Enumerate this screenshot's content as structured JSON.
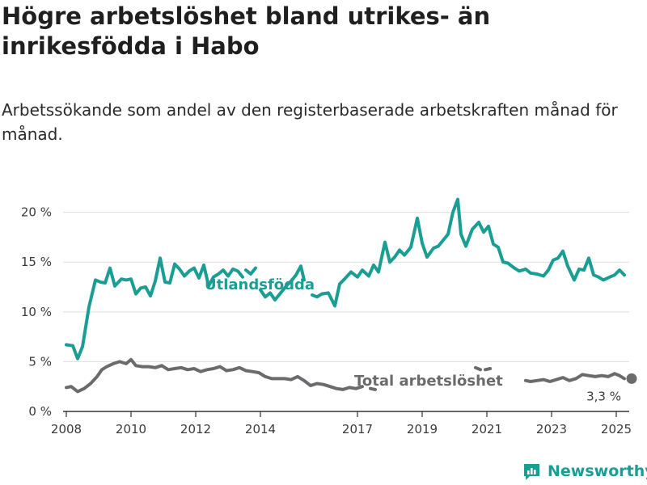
{
  "title": "Högre arbetslöshet bland utrikes- än inrikesfödda i Habo",
  "subtitle": "Arbetssökande som andel av den registerbaserade arbetskraften månad för månad.",
  "brand": {
    "name": "Newsworthy",
    "icon": "newsworthy-logo-icon"
  },
  "colors": {
    "utlandsfodda": "#1a9e94",
    "total": "#6b6b6d",
    "grid": "#dedede",
    "axis": "#333333"
  },
  "chart_data": {
    "type": "line",
    "title": "Högre arbetslöshet bland utrikes- än inrikesfödda i Habo",
    "subtitle": "Arbetssökande som andel av den registerbaserade arbetskraften månad för månad.",
    "xlabel": "",
    "ylabel": "",
    "xlim": [
      2007.9,
      2025.4
    ],
    "ylim": [
      0,
      22
    ],
    "x_ticks": [
      2008,
      2010,
      2012,
      2014,
      2017,
      2019,
      2021,
      2023,
      2025
    ],
    "x_tick_labels": [
      "2008",
      "2010",
      "2012",
      "2014",
      "2017",
      "2019",
      "2021",
      "2023",
      "2025"
    ],
    "y_ticks": [
      0,
      5,
      10,
      15,
      20
    ],
    "y_tick_labels": [
      "0 %",
      "5 %",
      "10 %",
      "15 %",
      "20 %"
    ],
    "grid": true,
    "legend": "direct labels on lines",
    "series": [
      {
        "name": "Utlandsfödda",
        "x": [
          2008.0,
          2008.2,
          2008.35,
          2008.5,
          2008.7,
          2008.9,
          2009.05,
          2009.2,
          2009.35,
          2009.5,
          2009.7,
          2009.85,
          2010.0,
          2010.15,
          2010.3,
          2010.45,
          2010.6,
          2010.75,
          2010.9,
          2011.05,
          2011.2,
          2011.35,
          2011.5,
          2011.65,
          2011.8,
          2011.95,
          2012.1,
          2012.25,
          2012.4,
          2012.55,
          2012.7,
          2012.85,
          2013.0,
          2013.15,
          2013.3,
          2013.45,
          null,
          2013.55,
          2013.7,
          2013.85,
          null,
          2014.0,
          2014.15,
          2014.3,
          2014.45,
          2014.6,
          2014.8,
          2014.95,
          2015.1,
          2015.25,
          2015.35,
          null,
          2015.6,
          2015.75,
          2015.9,
          2016.1,
          2016.3,
          2016.45,
          2016.6,
          2016.8,
          2017.0,
          2017.15,
          2017.35,
          2017.5,
          2017.65,
          2017.85,
          2018.0,
          2018.15,
          2018.3,
          2018.45,
          2018.65,
          2018.85,
          2019.0,
          2019.15,
          2019.35,
          2019.5,
          2019.65,
          2019.8,
          2019.95,
          2020.1,
          2020.2,
          2020.35,
          2020.55,
          2020.75,
          2020.9,
          2021.05,
          2021.2,
          2021.35,
          2021.5,
          2021.65,
          2021.85,
          2022.0,
          2022.2,
          2022.35,
          2022.55,
          2022.75,
          2022.9,
          2023.05,
          2023.2,
          2023.35,
          2023.5,
          2023.7,
          2023.85,
          2024.0,
          2024.15,
          2024.3,
          2024.45,
          2024.6,
          2024.8,
          2024.95,
          2025.1,
          2025.25
        ],
        "values": [
          6.7,
          6.6,
          5.3,
          6.5,
          10.5,
          13.2,
          13.0,
          12.9,
          14.4,
          12.6,
          13.3,
          13.2,
          13.3,
          11.8,
          12.4,
          12.5,
          11.6,
          13.1,
          15.4,
          13.0,
          12.9,
          14.8,
          14.3,
          13.6,
          14.1,
          14.4,
          13.4,
          14.7,
          12.6,
          13.5,
          13.8,
          14.2,
          13.6,
          14.3,
          14.1,
          13.5,
          null,
          14.2,
          13.8,
          14.4,
          null,
          12.2,
          11.5,
          11.9,
          11.2,
          11.8,
          12.6,
          13.1,
          13.7,
          14.6,
          13.2,
          null,
          11.7,
          11.5,
          11.8,
          11.9,
          10.6,
          12.8,
          13.3,
          14.0,
          13.5,
          14.2,
          13.6,
          14.7,
          14.0,
          17.0,
          15.0,
          15.5,
          16.2,
          15.7,
          16.5,
          19.4,
          16.9,
          15.5,
          16.4,
          16.6,
          17.2,
          17.8,
          20.0,
          21.3,
          17.8,
          16.6,
          18.3,
          19.0,
          18.0,
          18.6,
          16.8,
          16.5,
          15.0,
          14.9,
          14.4,
          14.1,
          14.3,
          13.9,
          13.8,
          13.6,
          14.2,
          15.2,
          15.4,
          16.1,
          14.6,
          13.2,
          14.3,
          14.2,
          15.4,
          13.7,
          13.5,
          13.2,
          13.5,
          13.7,
          14.2,
          13.7
        ],
        "label": "Utlandsfödda"
      },
      {
        "name": "Total arbetslöshet",
        "x": [
          2008.0,
          2008.15,
          2008.35,
          2008.55,
          2008.75,
          2008.95,
          2009.1,
          2009.25,
          2009.45,
          2009.65,
          2009.85,
          2010.0,
          2010.15,
          2010.35,
          2010.55,
          2010.75,
          2010.95,
          2011.15,
          2011.35,
          2011.55,
          2011.75,
          2011.95,
          2012.15,
          2012.35,
          2012.55,
          2012.75,
          2012.95,
          2013.15,
          2013.35,
          2013.55,
          2013.75,
          2013.95,
          2014.15,
          2014.35,
          2014.55,
          2014.75,
          2014.95,
          2015.15,
          2015.35,
          2015.55,
          2015.75,
          2015.95,
          2016.15,
          2016.35,
          2016.55,
          2016.75,
          2016.95,
          2017.15,
          null,
          2017.4,
          2017.55,
          null,
          2020.65,
          2020.8,
          null,
          2020.95,
          2021.1,
          null,
          2022.2,
          2022.35,
          2022.55,
          2022.75,
          2022.95,
          2023.15,
          2023.35,
          2023.55,
          2023.75,
          2023.95,
          2024.15,
          2024.35,
          2024.55,
          2024.75,
          2024.95,
          2025.1,
          2025.25
        ],
        "values": [
          2.4,
          2.5,
          2.0,
          2.3,
          2.8,
          3.5,
          4.2,
          4.5,
          4.8,
          5.0,
          4.8,
          5.2,
          4.6,
          4.5,
          4.5,
          4.4,
          4.6,
          4.2,
          4.3,
          4.4,
          4.2,
          4.3,
          4.0,
          4.2,
          4.3,
          4.5,
          4.1,
          4.2,
          4.4,
          4.1,
          4.0,
          3.9,
          3.5,
          3.3,
          3.3,
          3.3,
          3.2,
          3.5,
          3.1,
          2.6,
          2.8,
          2.7,
          2.5,
          2.3,
          2.2,
          2.4,
          2.3,
          2.5,
          null,
          2.3,
          2.2,
          null,
          4.4,
          4.2,
          null,
          4.2,
          4.3,
          null,
          3.1,
          3.0,
          3.1,
          3.2,
          3.0,
          3.2,
          3.4,
          3.1,
          3.3,
          3.7,
          3.6,
          3.5,
          3.6,
          3.5,
          3.8,
          3.6,
          3.3
        ],
        "label": "Total arbetslöshet",
        "end_label": "3,3 %"
      }
    ]
  }
}
